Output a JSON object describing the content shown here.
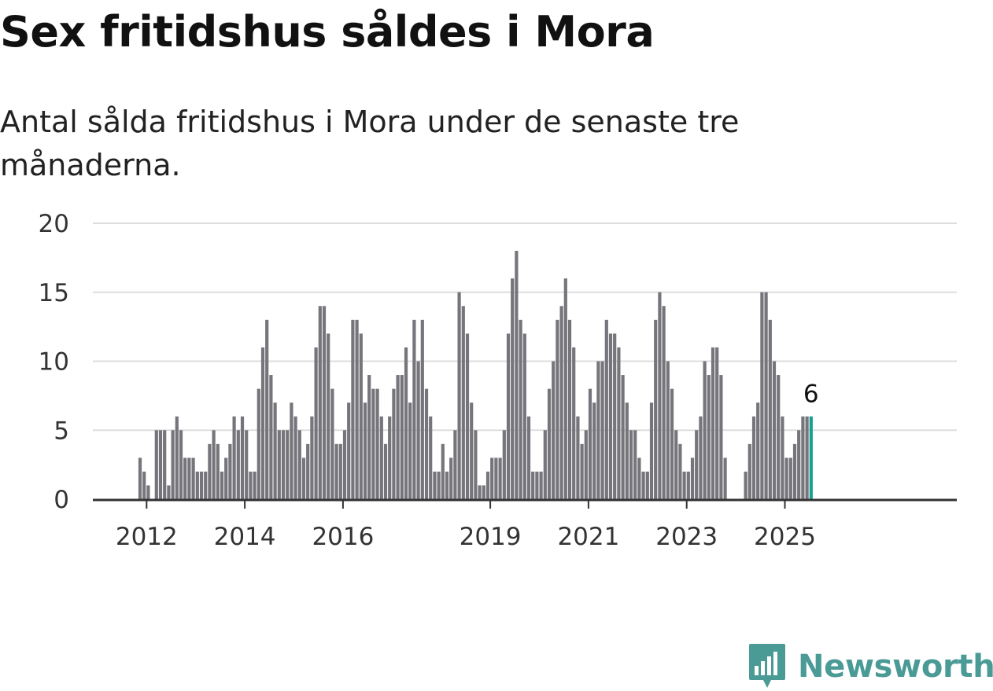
{
  "title": "Sex fritidshus såldes i Mora",
  "subtitle": "Antal sålda fritidshus i Mora under de senaste tre månaderna.",
  "brand": "Newsworthy",
  "colors": {
    "bar": "#76757b",
    "highlight": "#1a9e96",
    "grid": "#dddddd",
    "axis": "#333333",
    "brand": "#4a9a96"
  },
  "chart_data": {
    "type": "bar",
    "title": "Sex fritidshus såldes i Mora",
    "subtitle": "Antal sålda fritidshus i Mora under de senaste tre månaderna.",
    "xlabel": "",
    "ylabel": "",
    "ylim": [
      0,
      20
    ],
    "yticks": [
      0,
      5,
      10,
      15,
      20
    ],
    "xtick_labels": [
      "2012",
      "2014",
      "2016",
      "2019",
      "2021",
      "2023",
      "2025"
    ],
    "start_month": "2011-09",
    "end_month": "2025-06",
    "series_start_month": "2011-11",
    "values": [
      0,
      0,
      3,
      2,
      1,
      0,
      5,
      5,
      5,
      1,
      5,
      6,
      5,
      3,
      3,
      3,
      2,
      2,
      2,
      4,
      5,
      4,
      2,
      3,
      4,
      6,
      5,
      6,
      5,
      2,
      2,
      8,
      11,
      13,
      9,
      7,
      5,
      5,
      5,
      7,
      6,
      5,
      3,
      4,
      6,
      11,
      14,
      14,
      12,
      8,
      4,
      4,
      5,
      7,
      13,
      13,
      12,
      7,
      9,
      8,
      8,
      6,
      4,
      6,
      8,
      9,
      9,
      11,
      7,
      13,
      10,
      13,
      8,
      6,
      2,
      2,
      4,
      2,
      3,
      5,
      15,
      14,
      12,
      7,
      5,
      1,
      1,
      2,
      3,
      3,
      3,
      5,
      12,
      16,
      18,
      13,
      12,
      6,
      2,
      2,
      2,
      5,
      8,
      10,
      13,
      14,
      16,
      13,
      11,
      6,
      4,
      5,
      8,
      7,
      10,
      10,
      13,
      12,
      12,
      11,
      9,
      7,
      5,
      5,
      3,
      2,
      2,
      7,
      13,
      15,
      14,
      10,
      8,
      5,
      4,
      2,
      2,
      3,
      5,
      6,
      10,
      9,
      11,
      11,
      9,
      3,
      0,
      0,
      0,
      0,
      2,
      4,
      6,
      7,
      15,
      15,
      13,
      10,
      9,
      6,
      3,
      3,
      4,
      5,
      6,
      6,
      6
    ],
    "highlight_last": true,
    "annotation": {
      "label": "6",
      "value": 6
    },
    "grid": true
  }
}
